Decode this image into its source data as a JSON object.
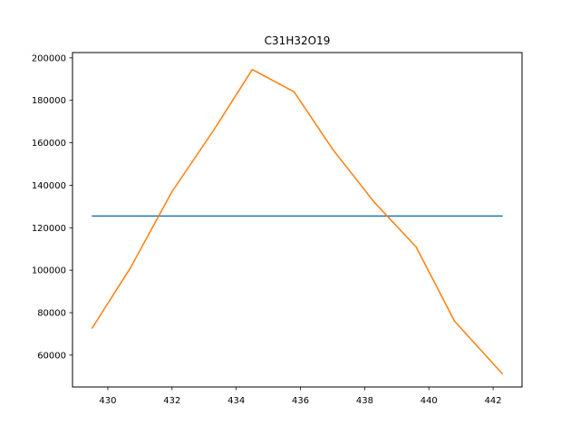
{
  "chart_data": {
    "type": "line",
    "title": "C31H32O19",
    "xlabel": "",
    "ylabel": "",
    "xlim": [
      428.9,
      442.9
    ],
    "ylim": [
      45000,
      202500
    ],
    "x_ticks": [
      430,
      432,
      434,
      436,
      438,
      440,
      442
    ],
    "y_ticks": [
      60000,
      80000,
      100000,
      120000,
      140000,
      160000,
      180000,
      200000
    ],
    "grid": false,
    "series": [
      {
        "color": "#1f77b4",
        "x": [
          429.5,
          442.3
        ],
        "y": [
          125500,
          125500
        ]
      },
      {
        "color": "#ff7f0e",
        "x": [
          429.5,
          430.7,
          432.0,
          433.3,
          434.5,
          435.8,
          437.0,
          438.3,
          439.6,
          440.8,
          442.3
        ],
        "y": [
          72500,
          101000,
          137000,
          166000,
          194500,
          184000,
          157000,
          132000,
          111000,
          76000,
          51000
        ]
      }
    ]
  }
}
